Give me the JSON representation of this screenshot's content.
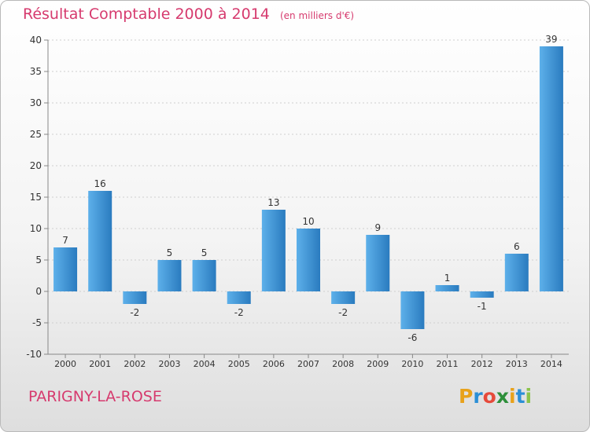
{
  "header": {
    "title": "Résultat Comptable 2000 à 2014",
    "unit": "(en milliers d'€)"
  },
  "footer": {
    "commune": "PARIGNY-LA-ROSE",
    "logo_letters": [
      "P",
      "r",
      "o",
      "x",
      "i",
      "t",
      "i"
    ],
    "logo_colors": [
      "#e8a21b",
      "#2b8fd6",
      "#e64a3b",
      "#2d8f3a",
      "#e8a21b",
      "#2b8fd6",
      "#8bc34a"
    ]
  },
  "colors": {
    "title": "#d63a6e",
    "bar_light": "#5db0ea",
    "bar_dark": "#2a7bbf",
    "axis": "#888888",
    "grid": "#cfcfcf",
    "labels": "#333333"
  },
  "chart_data": {
    "type": "bar",
    "categories": [
      "2000",
      "2001",
      "2002",
      "2003",
      "2004",
      "2005",
      "2006",
      "2007",
      "2008",
      "2009",
      "2010",
      "2011",
      "2012",
      "2013",
      "2014"
    ],
    "values": [
      7,
      16,
      -2,
      5,
      5,
      -2,
      13,
      10,
      -2,
      9,
      -6,
      1,
      -1,
      6,
      39
    ],
    "ylim": [
      -10,
      40
    ],
    "yticks": [
      -10,
      -5,
      0,
      5,
      10,
      15,
      20,
      25,
      30,
      35,
      40
    ],
    "grid": true,
    "value_labels": true
  }
}
